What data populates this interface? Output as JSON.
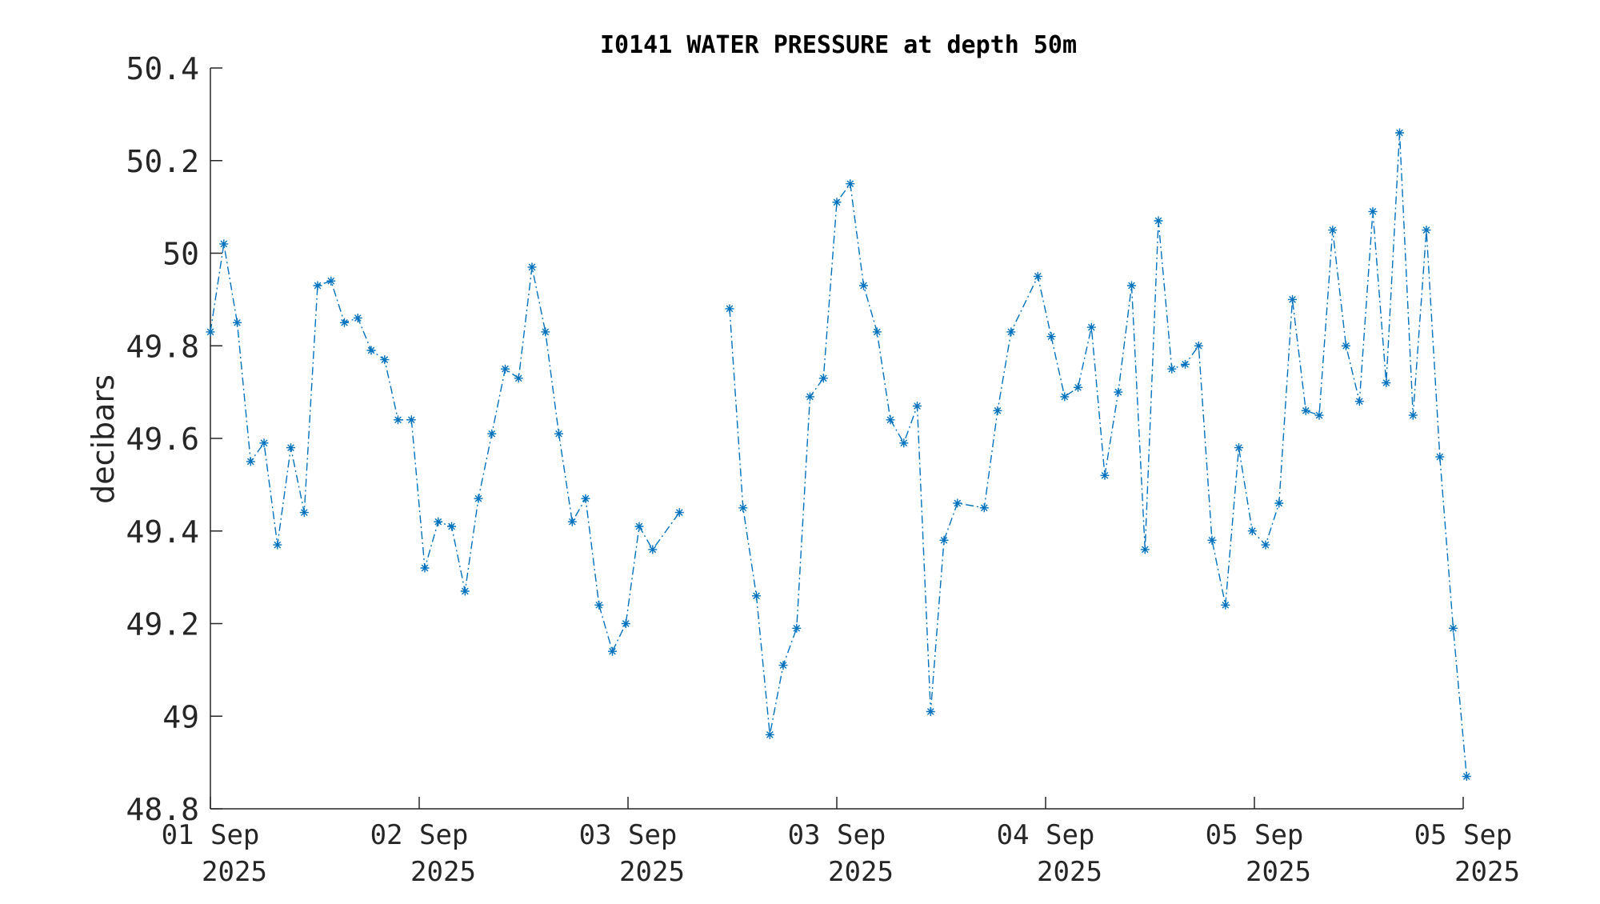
{
  "chart_data": {
    "type": "line",
    "title": "I0141 WATER PRESSURE at depth 50m",
    "xlabel": "",
    "ylabel": "decibars",
    "ylim": [
      48.8,
      50.4
    ],
    "y_ticks": [
      "48.8",
      "49",
      "49.2",
      "49.4",
      "49.6",
      "49.8",
      "50",
      "50.2",
      "50.4"
    ],
    "x_ticks": [
      {
        "line1": "01 Sep",
        "line2": "2025"
      },
      {
        "line1": "02 Sep",
        "line2": "2025"
      },
      {
        "line1": "03 Sep",
        "line2": "2025"
      },
      {
        "line1": "03 Sep",
        "line2": "2025"
      },
      {
        "line1": "04 Sep",
        "line2": "2025"
      },
      {
        "line1": "05 Sep",
        "line2": "2025"
      },
      {
        "line1": "05 Sep",
        "line2": "2025"
      }
    ],
    "grid": false,
    "line_style": "dash-dot",
    "marker": "asterisk",
    "color": "#0072BD",
    "series": [
      {
        "segments": [
          [
            49.83,
            50.02,
            49.85,
            49.55,
            49.59,
            49.37,
            49.58,
            49.44,
            49.93,
            49.94,
            49.85,
            49.86,
            49.79,
            49.77,
            49.64,
            49.64,
            49.32,
            49.42,
            49.41,
            49.27,
            49.47,
            49.61,
            49.75,
            49.73,
            49.97,
            49.83,
            49.61,
            49.42,
            49.47,
            49.24,
            49.14,
            49.2,
            49.41,
            49.36,
            null,
            49.44
          ],
          [
            49.88,
            49.45,
            49.26,
            48.96,
            49.11,
            49.19,
            49.69,
            49.73,
            50.11,
            50.15,
            49.93,
            49.83,
            49.64,
            49.59,
            49.67,
            49.01,
            49.38,
            49.46,
            null,
            49.45,
            49.66,
            49.83,
            null,
            49.95,
            49.82,
            49.69,
            49.71,
            49.84,
            49.52,
            49.7,
            49.93,
            49.36,
            50.07,
            49.75,
            49.76,
            49.8,
            49.38,
            49.24,
            49.58,
            49.4,
            49.37,
            49.46,
            49.9,
            49.66,
            49.65,
            50.05,
            49.8,
            49.68,
            50.09,
            49.72,
            50.26,
            49.65,
            50.05,
            49.56,
            49.19,
            48.87
          ]
        ]
      }
    ]
  }
}
